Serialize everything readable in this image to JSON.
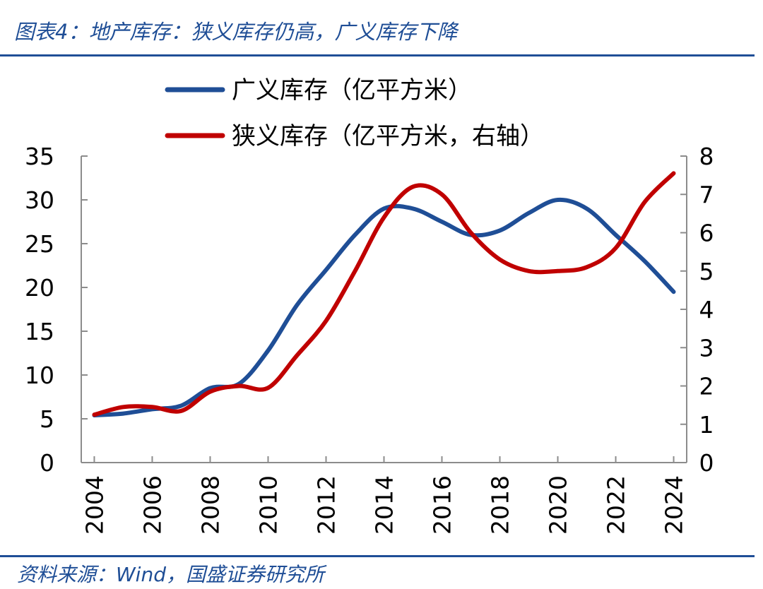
{
  "figure": {
    "title": "图表4：地产库存：狭义库存仍高，广义库存下降",
    "source": "资料来源：Wind，国盛证券研究所"
  },
  "chart_data": {
    "type": "line",
    "title": "",
    "xlabel": "",
    "x_ticks": [
      "2004",
      "2006",
      "2008",
      "2010",
      "2012",
      "2014",
      "2016",
      "2018",
      "2020",
      "2022",
      "2024"
    ],
    "y_left": {
      "range": [
        0,
        35
      ],
      "ticks": [
        0,
        5,
        10,
        15,
        20,
        25,
        30,
        35
      ]
    },
    "y_right": {
      "range": [
        0,
        8
      ],
      "ticks": [
        0,
        1,
        2,
        3,
        4,
        5,
        6,
        7,
        8
      ]
    },
    "legend_position": "top",
    "grid": false,
    "series": [
      {
        "name": "广义库存（亿平方米）",
        "axis": "left",
        "color": "#1f4e96",
        "x": [
          2004,
          2005,
          2006,
          2007,
          2008,
          2009,
          2010,
          2011,
          2012,
          2013,
          2014,
          2015,
          2016,
          2017,
          2018,
          2019,
          2020,
          2021,
          2022,
          2023,
          2024
        ],
        "y": [
          5.4,
          5.6,
          6.1,
          6.5,
          8.5,
          9.0,
          12.8,
          18.0,
          22.0,
          26.0,
          29.0,
          29.0,
          27.5,
          26.0,
          26.5,
          28.5,
          30.0,
          29.0,
          26.0,
          23.0,
          19.5
        ]
      },
      {
        "name": "狭义库存（亿平方米，右轴）",
        "axis": "right",
        "color": "#c00000",
        "x": [
          2004,
          2005,
          2006,
          2007,
          2008,
          2009,
          2010,
          2011,
          2012,
          2013,
          2014,
          2015,
          2016,
          2017,
          2018,
          2019,
          2020,
          2021,
          2022,
          2023,
          2024
        ],
        "y": [
          1.25,
          1.45,
          1.45,
          1.35,
          1.85,
          2.0,
          1.95,
          2.8,
          3.7,
          5.0,
          6.4,
          7.2,
          7.0,
          6.0,
          5.3,
          5.0,
          5.0,
          5.1,
          5.6,
          6.8,
          7.55
        ]
      }
    ]
  }
}
